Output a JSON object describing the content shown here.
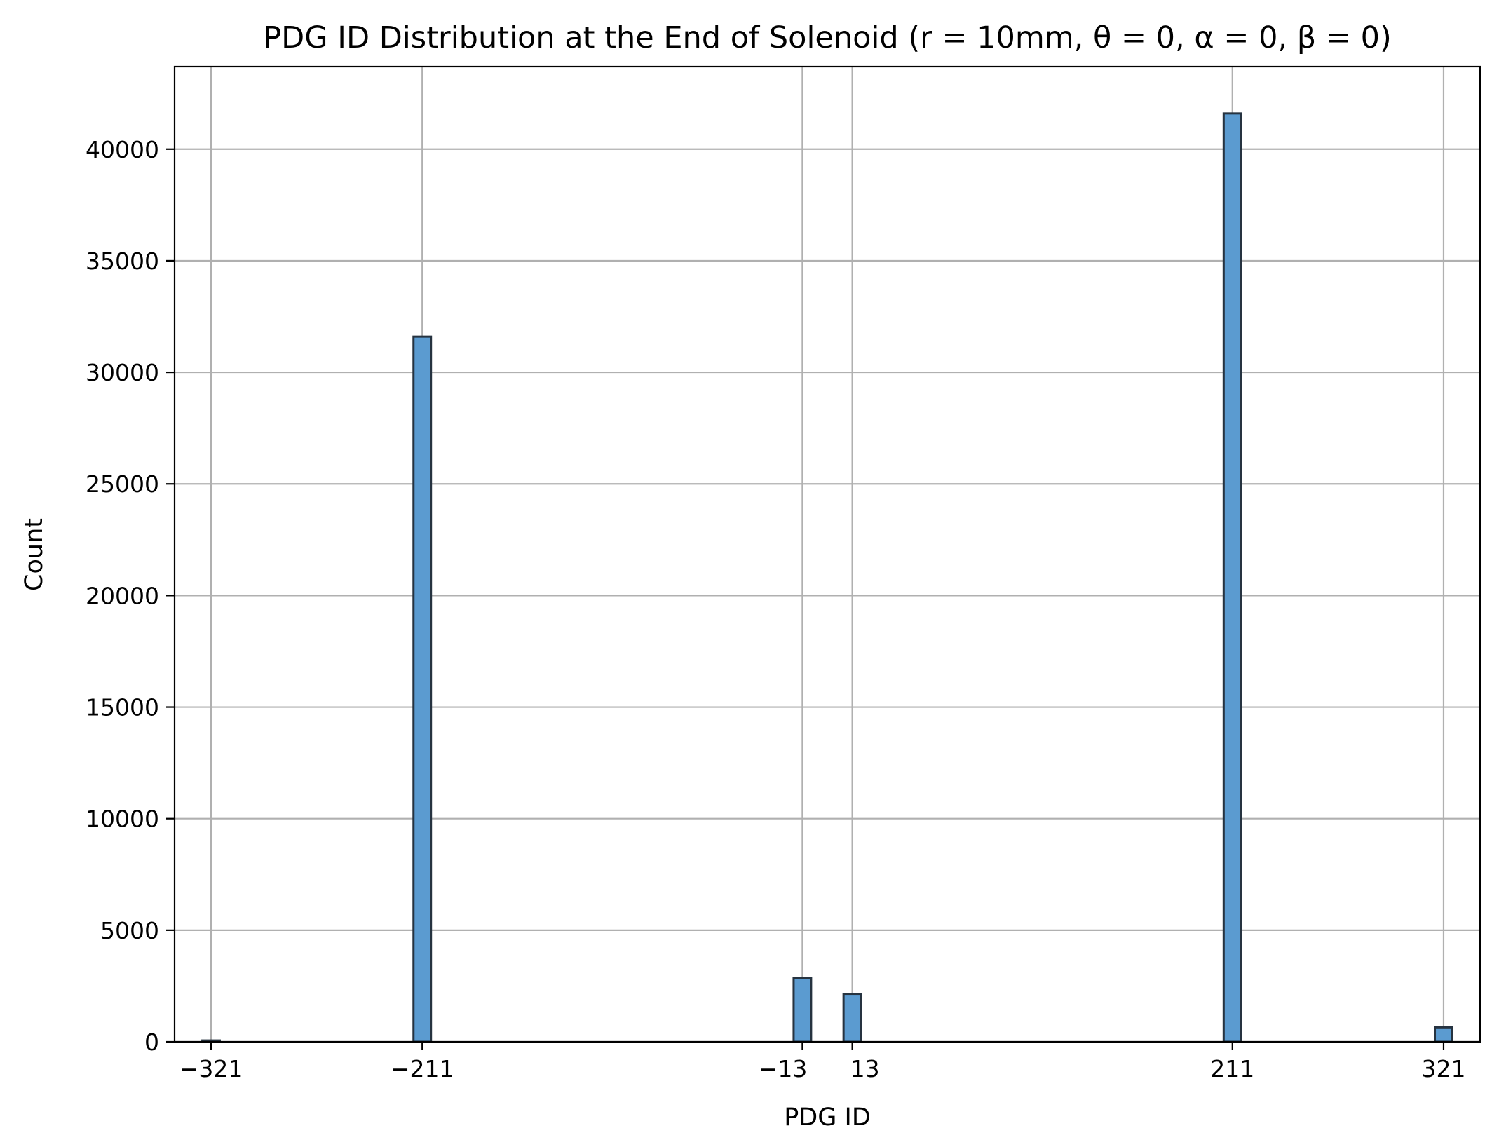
{
  "chart_data": {
    "type": "bar",
    "title": "PDG ID Distribution at the End of Solenoid (r = 10mm, θ = 0, α = 0, β = 0)",
    "xlabel": "PDG ID",
    "ylabel": "Count",
    "xlim": [
      -340,
      340
    ],
    "ylim": [
      0,
      43700
    ],
    "x_ticks": [
      -321,
      -211,
      -13,
      13,
      211,
      321
    ],
    "x_tick_labels": [
      "−321",
      "−211",
      "−13",
      "13",
      "211",
      "321"
    ],
    "y_ticks": [
      0,
      5000,
      10000,
      15000,
      20000,
      25000,
      30000,
      35000,
      40000
    ],
    "y_tick_labels": [
      "0",
      "5000",
      "10000",
      "15000",
      "20000",
      "25000",
      "30000",
      "35000",
      "40000"
    ],
    "grid": true,
    "bar_width": 9.1,
    "bar_color": "#5b9bd0",
    "edge_color": "#263340",
    "bars": [
      {
        "x": -321,
        "value": 60
      },
      {
        "x": -211,
        "value": 31600
      },
      {
        "x": -13,
        "value": 2850
      },
      {
        "x": 13,
        "value": 2150
      },
      {
        "x": 211,
        "value": 41600
      },
      {
        "x": 321,
        "value": 650
      }
    ]
  }
}
